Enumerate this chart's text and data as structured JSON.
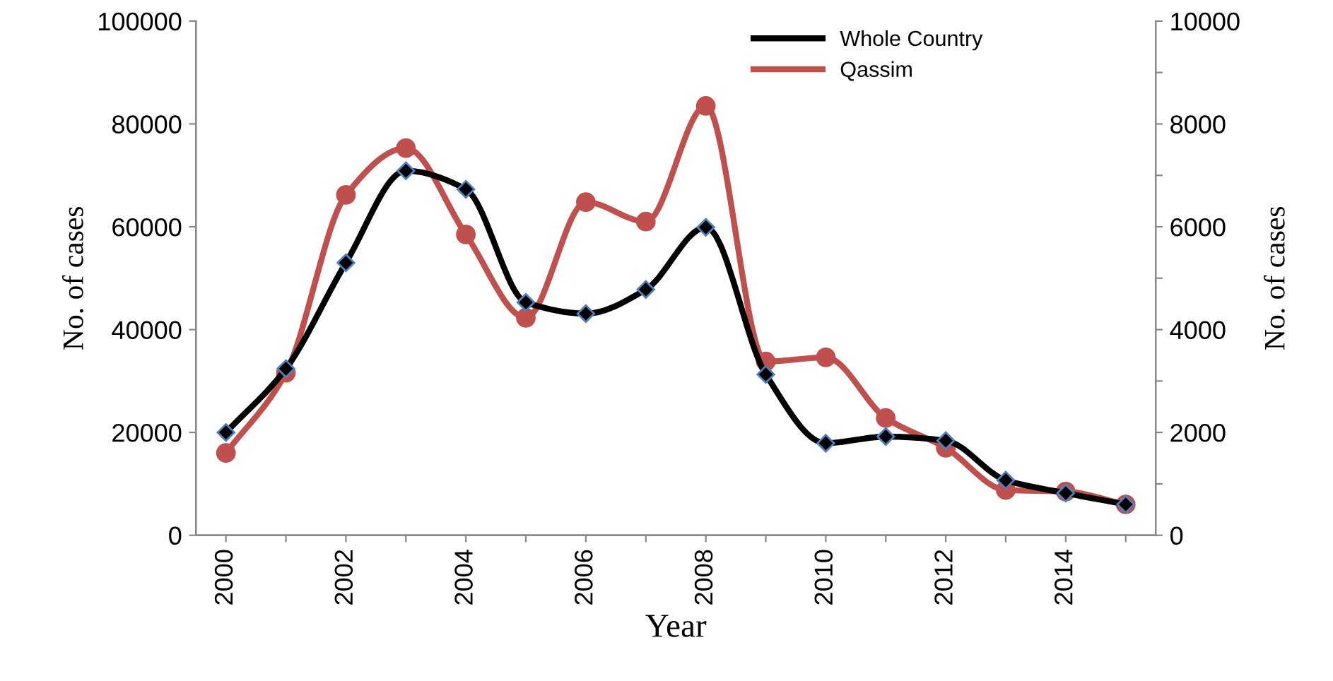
{
  "chart_data": {
    "type": "line",
    "xlabel": "Year",
    "ylabel": "No. of cases",
    "y2label": "No. of cases",
    "x": [
      2000,
      2001,
      2002,
      2003,
      2004,
      2005,
      2006,
      2007,
      2008,
      2009,
      2010,
      2011,
      2012,
      2013,
      2014,
      2015
    ],
    "series": [
      {
        "name": "Whole Country",
        "color": "#000000",
        "marker": "diamond",
        "values": [
          20000,
          32400,
          53000,
          70900,
          67300,
          45300,
          43100,
          47800,
          59900,
          31300,
          17900,
          19200,
          18400,
          10700,
          8200,
          6000
        ]
      },
      {
        "name": "Qassim",
        "color": "#c0504d",
        "marker": "circle",
        "axis": "y2",
        "values": [
          1600,
          3160,
          6620,
          7530,
          5850,
          4230,
          6480,
          6100,
          8350,
          3380,
          3460,
          2280,
          1700,
          880,
          850,
          600
        ]
      }
    ],
    "xlim": [
      1999.5,
      2015.5
    ],
    "xticks": [
      {
        "value": 2000,
        "label": "2000"
      },
      {
        "value": 2001,
        "label": null
      },
      {
        "value": 2002,
        "label": "2002"
      },
      {
        "value": 2003,
        "label": null
      },
      {
        "value": 2004,
        "label": "2004"
      },
      {
        "value": 2005,
        "label": null
      },
      {
        "value": 2006,
        "label": "2006"
      },
      {
        "value": 2007,
        "label": null
      },
      {
        "value": 2008,
        "label": "2008"
      },
      {
        "value": 2009,
        "label": null
      },
      {
        "value": 2010,
        "label": "2010"
      },
      {
        "value": 2011,
        "label": null
      },
      {
        "value": 2012,
        "label": "2012"
      },
      {
        "value": 2013,
        "label": null
      },
      {
        "value": 2014,
        "label": "2014"
      },
      {
        "value": 2015,
        "label": null
      }
    ],
    "ylim": [
      0,
      100000
    ],
    "yticks": [
      0,
      20000,
      40000,
      60000,
      80000,
      100000
    ],
    "y2lim": [
      0,
      10000
    ],
    "y2ticks": [
      0,
      {
        "value": 1000,
        "label": null
      },
      2000,
      {
        "value": 3000,
        "label": null
      },
      4000,
      {
        "value": 5000,
        "label": null
      },
      6000,
      {
        "value": 7000,
        "label": null
      },
      8000,
      {
        "value": 9000,
        "label": null
      },
      10000
    ],
    "legend": "top right",
    "grid": false,
    "line_style": "solid"
  }
}
